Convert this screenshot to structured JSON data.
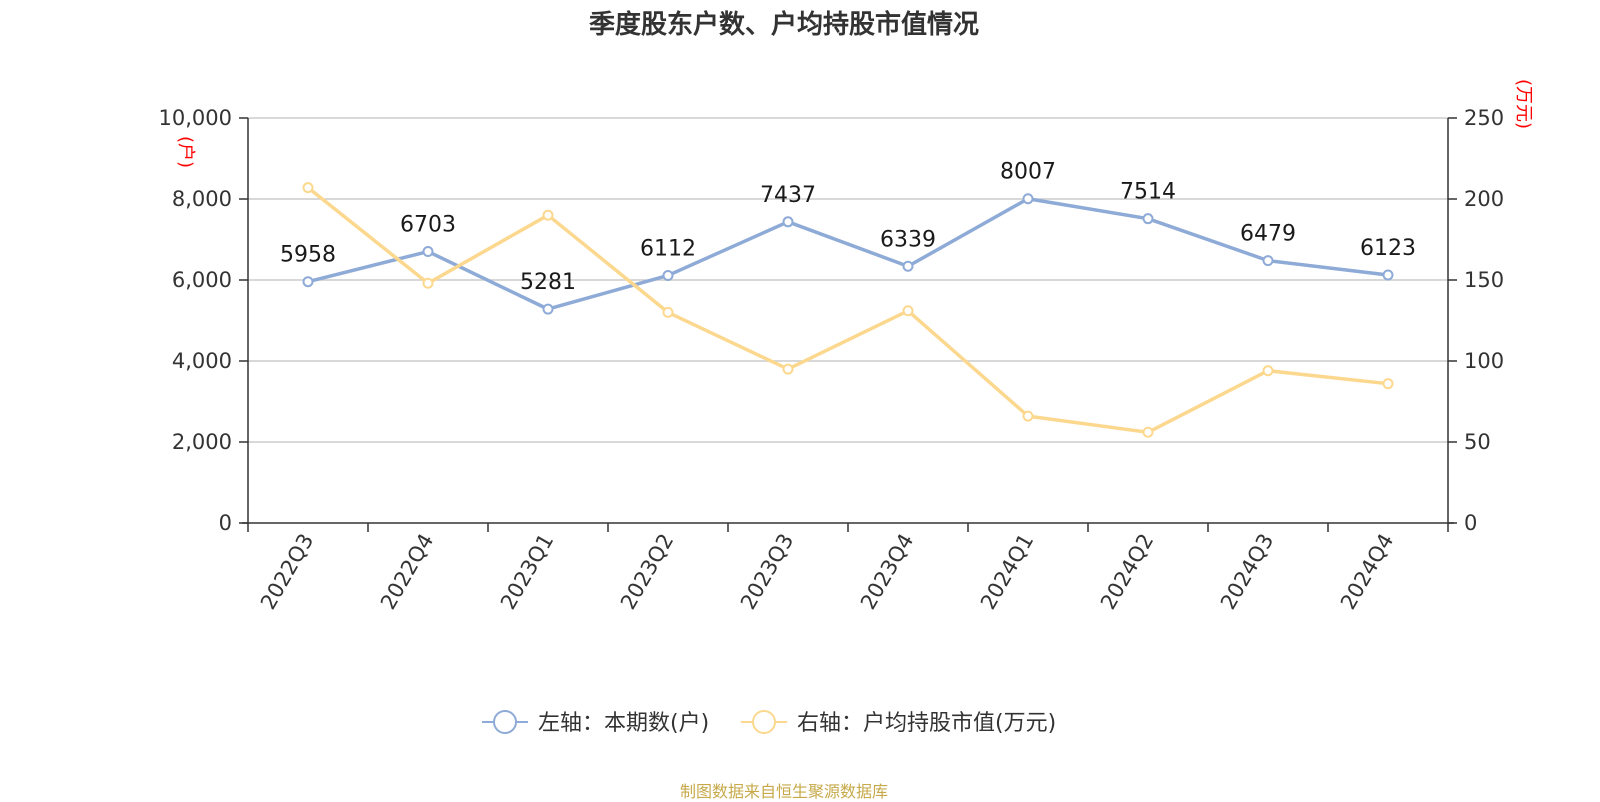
{
  "chart_data": {
    "type": "line",
    "title": "季度股东户数、户均持股市值情况",
    "categories": [
      "2022Q3",
      "2022Q4",
      "2023Q1",
      "2023Q2",
      "2023Q3",
      "2023Q4",
      "2024Q1",
      "2024Q2",
      "2024Q3",
      "2024Q4"
    ],
    "series": [
      {
        "name": "左轴：本期数(户)",
        "axis": "left",
        "color": "#8eaad6",
        "values": [
          5958,
          6703,
          5281,
          6112,
          7437,
          6339,
          8007,
          7514,
          6479,
          6123
        ],
        "labels": [
          "5958",
          "6703",
          "5281",
          "6112",
          "7437",
          "6339",
          "8007",
          "7514",
          "6479",
          "6123"
        ]
      },
      {
        "name": "右轴：户均持股市值(万元)",
        "axis": "right",
        "color": "#fcd88f",
        "values": [
          207,
          148,
          190,
          130,
          95,
          131,
          66,
          56,
          94,
          86
        ]
      }
    ],
    "left_axis": {
      "unit": "(户)",
      "ylim": [
        0,
        10000
      ],
      "ticks": [
        0,
        2000,
        4000,
        6000,
        8000,
        10000
      ],
      "tick_labels": [
        "0",
        "2,000",
        "4,000",
        "6,000",
        "8,000",
        "10,000"
      ]
    },
    "right_axis": {
      "unit": "(万元)",
      "ylim": [
        0,
        250
      ],
      "ticks": [
        0,
        50,
        100,
        150,
        200,
        250
      ],
      "tick_labels": [
        "0",
        "50",
        "100",
        "150",
        "200",
        "250"
      ]
    },
    "grid": true,
    "legend_position": "bottom-center",
    "source": "制图数据来自恒生聚源数据库"
  }
}
